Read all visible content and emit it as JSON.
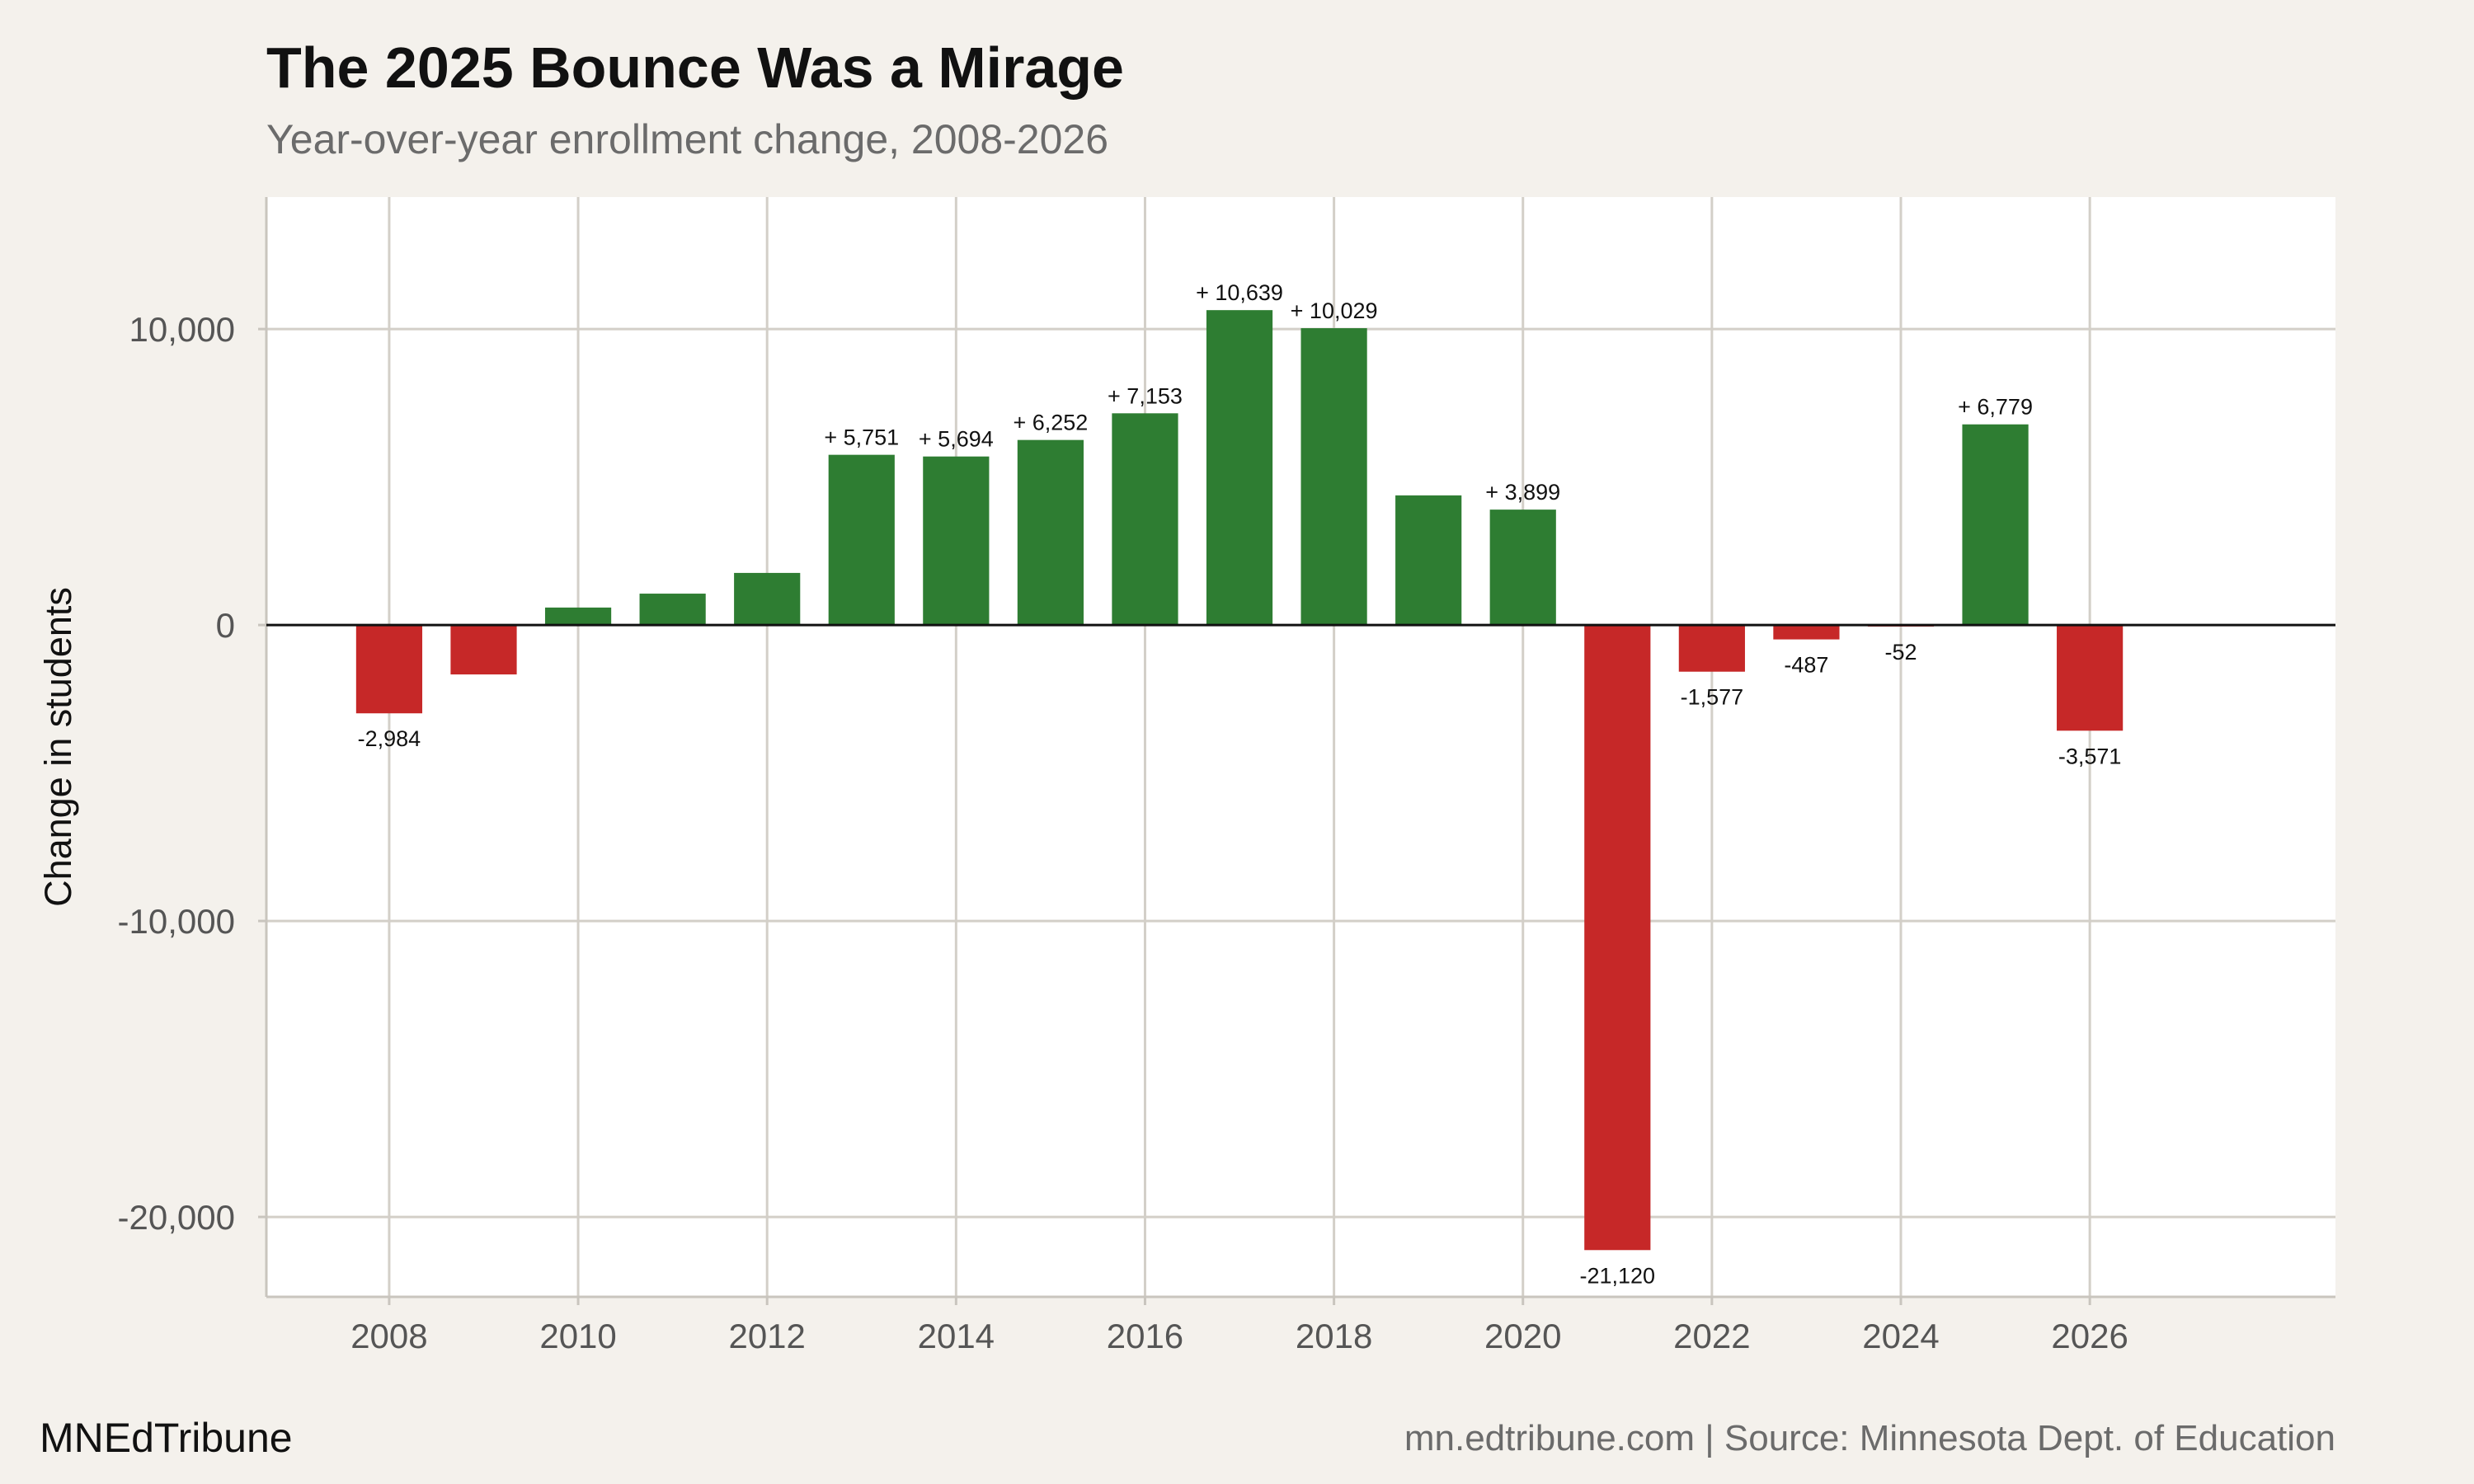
{
  "chart_data": {
    "type": "bar",
    "title": "The 2025 Bounce Was a Mirage",
    "subtitle": "Year-over-year enrollment change, 2008-2026",
    "xlabel": "",
    "ylabel": "Change in students",
    "x": [
      2008,
      2009,
      2010,
      2011,
      2012,
      2013,
      2014,
      2015,
      2016,
      2017,
      2018,
      2019,
      2020,
      2021,
      2022,
      2023,
      2024,
      2025,
      2026
    ],
    "values": [
      -2984,
      -1670,
      590,
      1060,
      1760,
      5751,
      5694,
      6252,
      7153,
      10639,
      10029,
      4380,
      3899,
      -21120,
      -1577,
      -487,
      -52,
      6779,
      -3571
    ],
    "labels": [
      "-2,984",
      null,
      null,
      null,
      null,
      "+ 5,751",
      "+ 5,694",
      "+ 6,252",
      "+ 7,153",
      "+ 10,639",
      "+ 10,029",
      null,
      "+ 3,899",
      "-21,120",
      "-1,577",
      "-487",
      "-52",
      "+ 6,779",
      "-3,571"
    ],
    "xticks": [
      2008,
      2010,
      2012,
      2014,
      2016,
      2018,
      2020,
      2022,
      2024,
      2026
    ],
    "yticks": [
      -20000,
      -10000,
      0,
      10000
    ],
    "ytick_labels": [
      "-20,000",
      "-10,000",
      "0",
      "10,000"
    ],
    "xlim": [
      2006.7,
      2028.6
    ],
    "ylim": [
      -22700,
      14460
    ],
    "grid": true,
    "colors": {
      "positive": "#2e7d32",
      "negative": "#c62828",
      "background": "#f4f1ec",
      "panel": "#ffffff",
      "grid": "#d3cfc8"
    }
  },
  "footer": {
    "brand": "MNEdTribune",
    "source": "mn.edtribune.com | Source: Minnesota Dept. of Education"
  }
}
